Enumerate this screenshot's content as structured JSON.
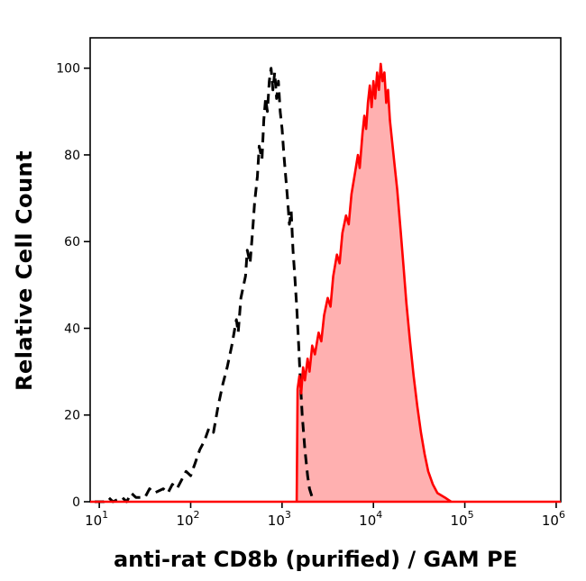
{
  "chart_data": {
    "type": "area",
    "subtype": "flow-cytometry-histogram-overlay",
    "title": "",
    "xlabel": "anti-rat CD8b (purified) / GAM PE",
    "ylabel": "Relative Cell Count",
    "x_scale": "log10",
    "xlog_range": [
      0.9,
      6.05
    ],
    "ylim": [
      0,
      107
    ],
    "x_tick_base": "10",
    "x_tick_exponents": [
      1,
      2,
      3,
      4,
      5,
      6
    ],
    "y_ticks": [
      0,
      20,
      40,
      60,
      80,
      100
    ],
    "grid": false,
    "legend": "none",
    "axis_color": "#000000",
    "baseline": {
      "color": "#ff0000",
      "y": 0,
      "width": 2.6
    },
    "series": [
      {
        "name": "negative-control-dashed",
        "color": "#000000",
        "dash": "11 7",
        "width": 3,
        "fill": null,
        "points": [
          [
            0.95,
            0
          ],
          [
            1.05,
            0
          ],
          [
            1.1,
            1
          ],
          [
            1.15,
            0
          ],
          [
            1.25,
            1
          ],
          [
            1.3,
            0
          ],
          [
            1.35,
            2
          ],
          [
            1.4,
            1
          ],
          [
            1.5,
            1
          ],
          [
            1.55,
            3
          ],
          [
            1.6,
            2
          ],
          [
            1.7,
            3
          ],
          [
            1.75,
            2
          ],
          [
            1.8,
            4
          ],
          [
            1.85,
            3
          ],
          [
            1.9,
            5
          ],
          [
            1.95,
            7
          ],
          [
            2.0,
            6
          ],
          [
            2.05,
            9
          ],
          [
            2.1,
            12
          ],
          [
            2.15,
            14
          ],
          [
            2.2,
            17
          ],
          [
            2.25,
            16
          ],
          [
            2.3,
            22
          ],
          [
            2.35,
            27
          ],
          [
            2.4,
            31
          ],
          [
            2.45,
            36
          ],
          [
            2.5,
            42
          ],
          [
            2.52,
            39
          ],
          [
            2.55,
            47
          ],
          [
            2.6,
            52
          ],
          [
            2.62,
            58
          ],
          [
            2.65,
            55
          ],
          [
            2.68,
            63
          ],
          [
            2.7,
            69
          ],
          [
            2.73,
            75
          ],
          [
            2.75,
            82
          ],
          [
            2.78,
            79
          ],
          [
            2.8,
            88
          ],
          [
            2.82,
            93
          ],
          [
            2.84,
            90
          ],
          [
            2.86,
            97
          ],
          [
            2.88,
            100
          ],
          [
            2.9,
            95
          ],
          [
            2.92,
            99
          ],
          [
            2.94,
            93
          ],
          [
            2.96,
            97
          ],
          [
            2.98,
            90
          ],
          [
            3.0,
            86
          ],
          [
            3.02,
            80
          ],
          [
            3.04,
            75
          ],
          [
            3.06,
            70
          ],
          [
            3.08,
            64
          ],
          [
            3.1,
            67
          ],
          [
            3.12,
            58
          ],
          [
            3.14,
            52
          ],
          [
            3.16,
            45
          ],
          [
            3.18,
            37
          ],
          [
            3.2,
            28
          ],
          [
            3.22,
            20
          ],
          [
            3.25,
            12
          ],
          [
            3.28,
            6
          ],
          [
            3.3,
            3
          ],
          [
            3.33,
            1
          ],
          [
            3.36,
            0
          ]
        ]
      },
      {
        "name": "cd8b-pe-positive",
        "color": "#ff0000",
        "dash": null,
        "width": 2.6,
        "fill": "rgba(255,80,80,0.45)",
        "points": [
          [
            3.16,
            0
          ],
          [
            3.17,
            26
          ],
          [
            3.19,
            29
          ],
          [
            3.21,
            25
          ],
          [
            3.23,
            31
          ],
          [
            3.25,
            28
          ],
          [
            3.28,
            33
          ],
          [
            3.3,
            30
          ],
          [
            3.33,
            36
          ],
          [
            3.36,
            34
          ],
          [
            3.4,
            39
          ],
          [
            3.43,
            37
          ],
          [
            3.46,
            43
          ],
          [
            3.5,
            47
          ],
          [
            3.53,
            45
          ],
          [
            3.56,
            52
          ],
          [
            3.6,
            57
          ],
          [
            3.63,
            55
          ],
          [
            3.66,
            62
          ],
          [
            3.7,
            66
          ],
          [
            3.73,
            64
          ],
          [
            3.76,
            71
          ],
          [
            3.8,
            76
          ],
          [
            3.83,
            80
          ],
          [
            3.85,
            77
          ],
          [
            3.88,
            85
          ],
          [
            3.9,
            89
          ],
          [
            3.92,
            86
          ],
          [
            3.94,
            92
          ],
          [
            3.96,
            96
          ],
          [
            3.98,
            91
          ],
          [
            4.0,
            97
          ],
          [
            4.02,
            93
          ],
          [
            4.04,
            99
          ],
          [
            4.06,
            95
          ],
          [
            4.08,
            101
          ],
          [
            4.1,
            97
          ],
          [
            4.12,
            99
          ],
          [
            4.14,
            92
          ],
          [
            4.16,
            95
          ],
          [
            4.18,
            88
          ],
          [
            4.2,
            84
          ],
          [
            4.23,
            78
          ],
          [
            4.26,
            72
          ],
          [
            4.3,
            62
          ],
          [
            4.33,
            54
          ],
          [
            4.36,
            46
          ],
          [
            4.4,
            37
          ],
          [
            4.44,
            29
          ],
          [
            4.48,
            22
          ],
          [
            4.52,
            16
          ],
          [
            4.56,
            11
          ],
          [
            4.6,
            7
          ],
          [
            4.65,
            4
          ],
          [
            4.7,
            2
          ],
          [
            4.78,
            1
          ],
          [
            4.85,
            0
          ]
        ]
      }
    ]
  }
}
